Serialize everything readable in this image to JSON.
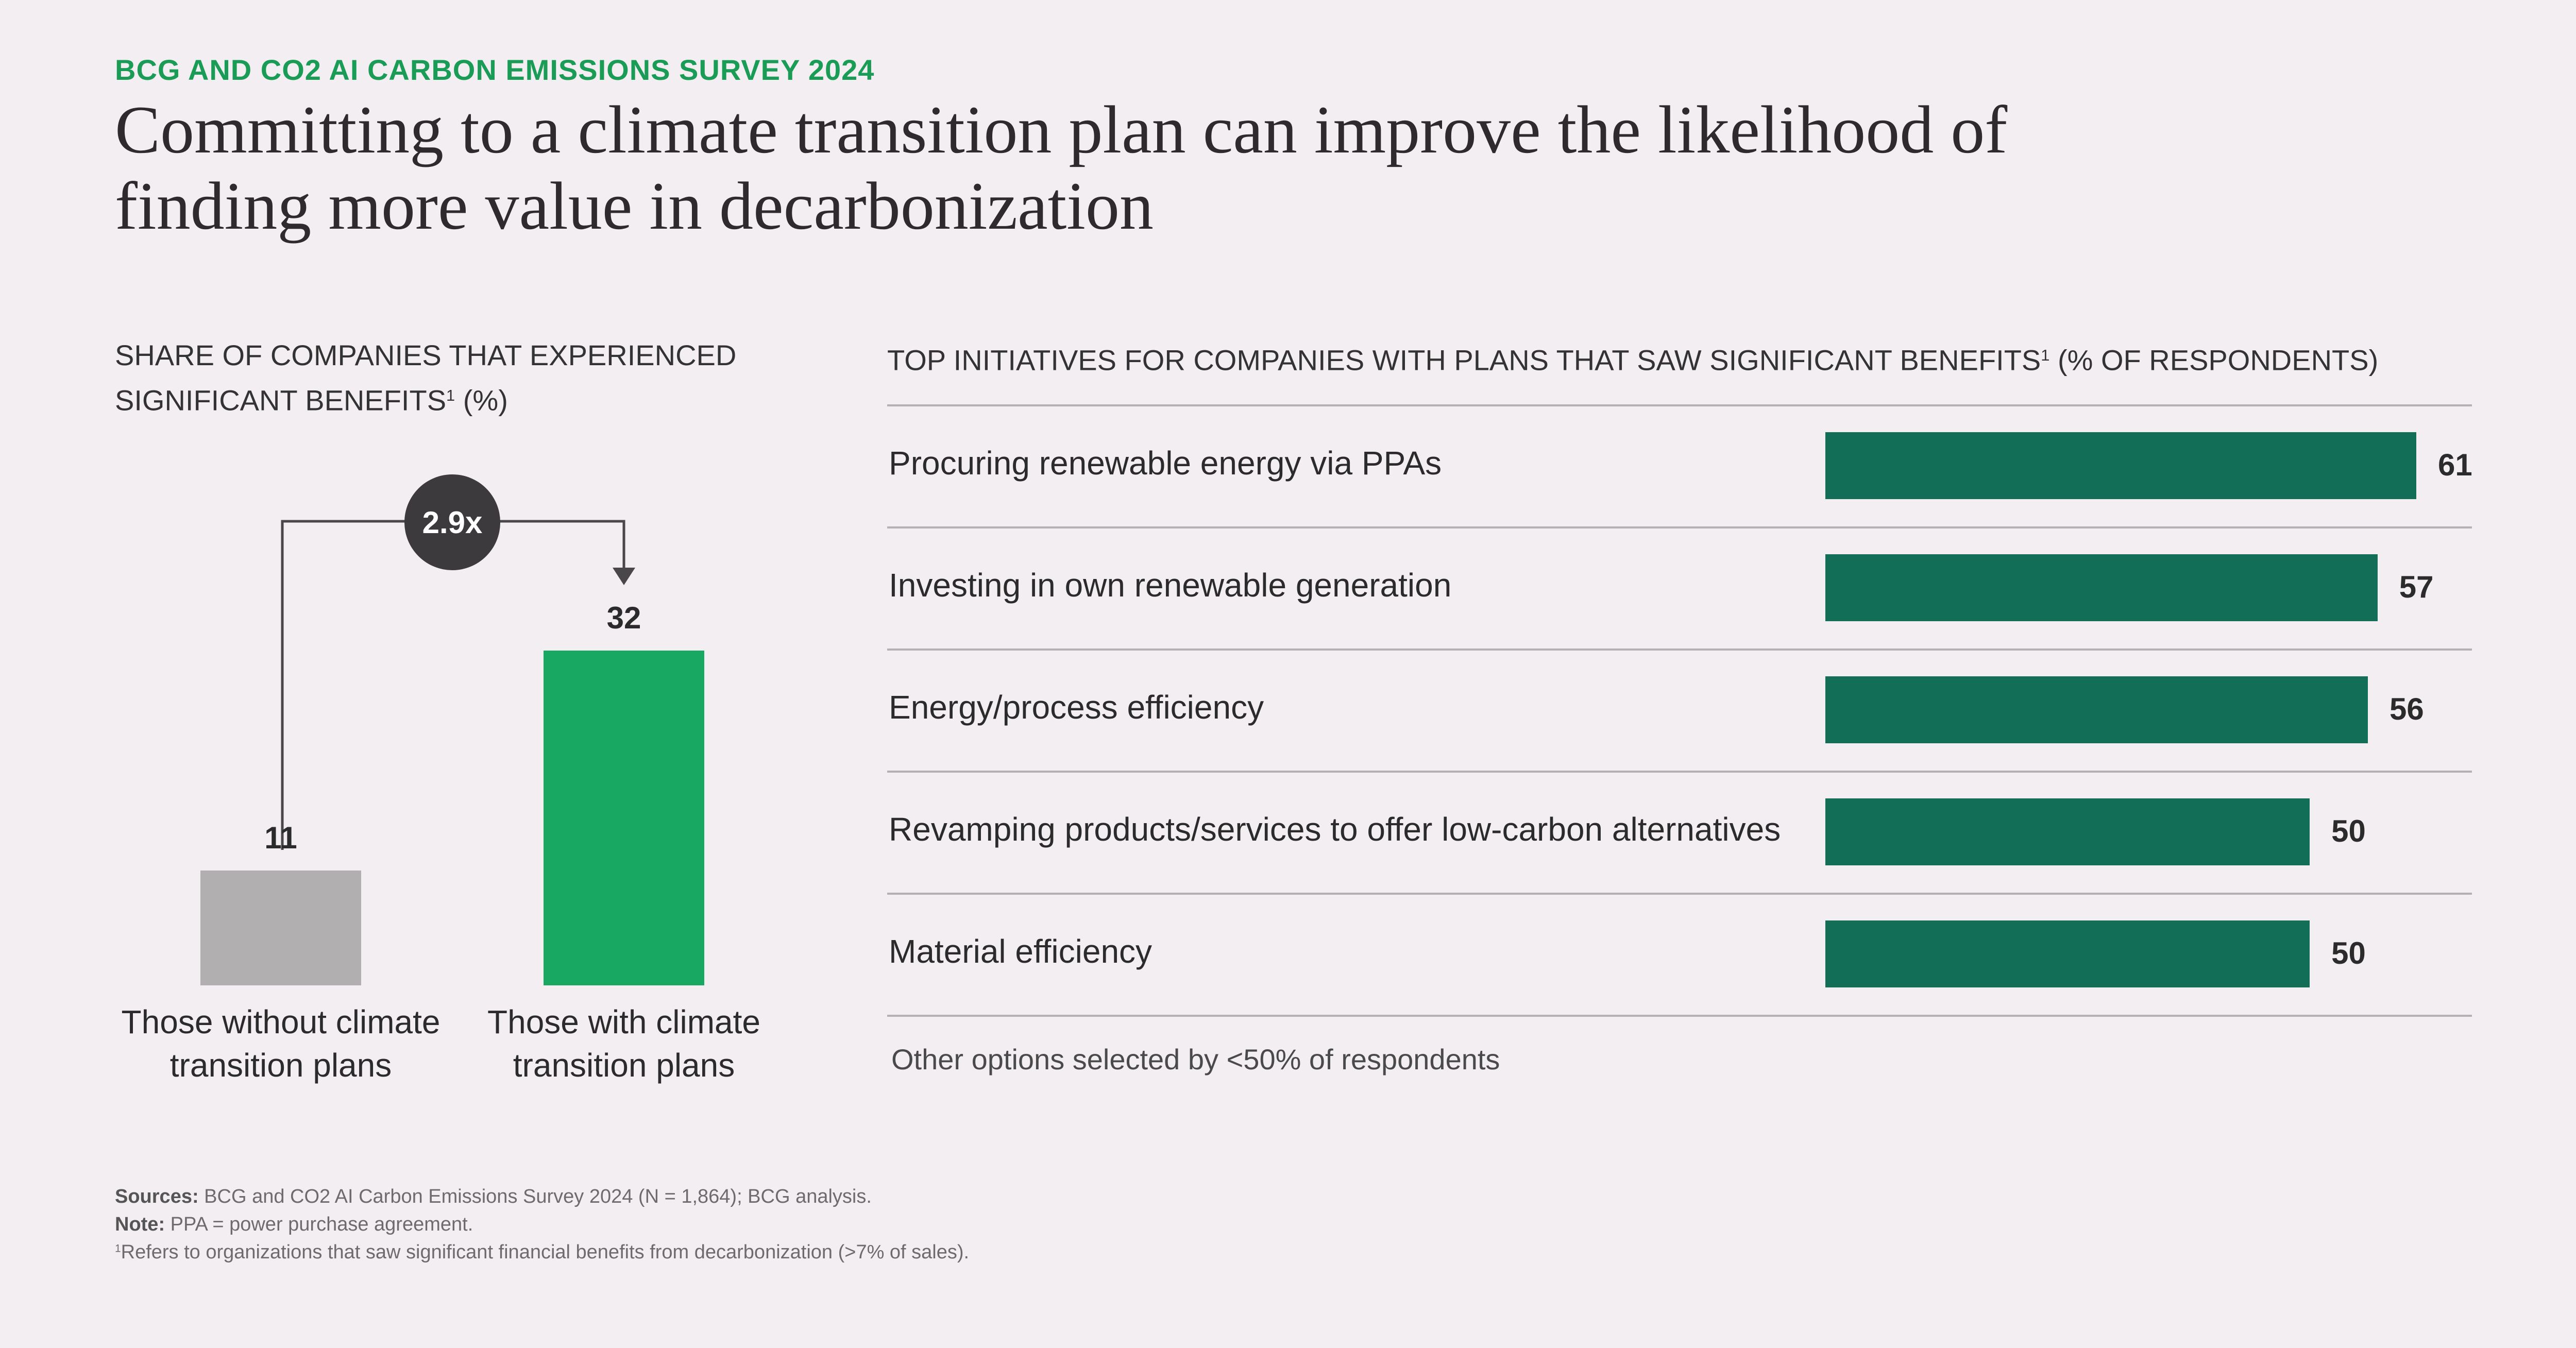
{
  "header": {
    "eyebrow": "BCG AND CO2 AI CARBON EMISSIONS SURVEY 2024",
    "title_line1": "Committing to a climate transition plan can improve the likelihood of",
    "title_line2": "finding more value in decarbonization"
  },
  "left_panel": {
    "heading_line1": "SHARE OF COMPANIES THAT EXPERIENCED",
    "heading_line2_pre": "SIGNIFICANT BENEFITS",
    "heading_sup": "1",
    "heading_line2_post": " (%)",
    "multiplier": "2.9x"
  },
  "right_panel": {
    "heading_pre": "TOP INITIATIVES FOR COMPANIES WITH PLANS THAT SAW SIGNIFICANT BENEFITS",
    "heading_sup": "1",
    "heading_post": " (% OF RESPONDENTS)",
    "other_note": "Other options selected by <50% of respondents"
  },
  "chart_data": [
    {
      "type": "bar",
      "orientation": "vertical",
      "title": "SHARE OF COMPANIES THAT EXPERIENCED SIGNIFICANT BENEFITS (%)",
      "categories": [
        "Those without climate transition plans",
        "Those with climate transition plans"
      ],
      "category_lines": [
        [
          "Those without climate",
          "transition plans"
        ],
        [
          "Those with climate",
          "transition plans"
        ]
      ],
      "values": [
        11,
        32
      ],
      "colors": [
        "#b2afb1",
        "#19a862"
      ],
      "annotation": "2.9x",
      "ylim": [
        0,
        32
      ]
    },
    {
      "type": "bar",
      "orientation": "horizontal",
      "title": "TOP INITIATIVES FOR COMPANIES WITH PLANS THAT SAW SIGNIFICANT BENEFITS (% OF RESPONDENTS)",
      "categories": [
        "Procuring renewable energy via PPAs",
        "Investing in own renewable generation",
        "Energy/process efficiency",
        "Revamping products/services to offer low-carbon alternatives",
        "Material efficiency"
      ],
      "values": [
        61,
        57,
        56,
        50,
        50
      ],
      "color": "#126e57",
      "xlim": [
        0,
        61
      ]
    }
  ],
  "footer": {
    "sources_label": "Sources:",
    "sources_text": " BCG and CO2 AI Carbon Emissions Survey 2024 (N = 1,864); BCG analysis.",
    "note_label": "Note:",
    "note_text": " PPA = power purchase agreement.",
    "footnote_sup": "1",
    "footnote_text": "Refers to organizations that saw significant financial benefits from decarbonization (>7% of sales)."
  }
}
